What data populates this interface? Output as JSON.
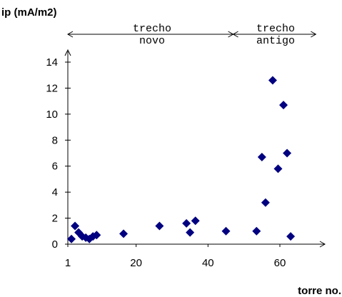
{
  "chart_data": {
    "type": "scatter",
    "title": "",
    "ylabel": "ip (mA/m2)",
    "xlabel": "torre no.",
    "xlim": [
      1,
      70
    ],
    "ylim": [
      0,
      15
    ],
    "x_ticks": [
      1,
      20,
      40,
      60
    ],
    "y_ticks": [
      0,
      2,
      4,
      6,
      8,
      10,
      12,
      14
    ],
    "marker_color": "#000080",
    "segments": [
      {
        "lines": [
          "trecho",
          "novo"
        ],
        "from": 1,
        "to": 47
      },
      {
        "lines": [
          "trecho",
          "antigo"
        ],
        "from": 47,
        "to": 70
      }
    ],
    "points": [
      {
        "x": 2,
        "y": 0.4
      },
      {
        "x": 3,
        "y": 1.4
      },
      {
        "x": 4,
        "y": 0.9
      },
      {
        "x": 5,
        "y": 0.6
      },
      {
        "x": 6,
        "y": 0.5
      },
      {
        "x": 7,
        "y": 0.4
      },
      {
        "x": 8,
        "y": 0.6
      },
      {
        "x": 9,
        "y": 0.7
      },
      {
        "x": 16.5,
        "y": 0.8
      },
      {
        "x": 26.5,
        "y": 1.4
      },
      {
        "x": 34,
        "y": 1.6
      },
      {
        "x": 35,
        "y": 0.9
      },
      {
        "x": 36.5,
        "y": 1.8
      },
      {
        "x": 45,
        "y": 1.0
      },
      {
        "x": 53.5,
        "y": 1.0
      },
      {
        "x": 55,
        "y": 6.7
      },
      {
        "x": 56,
        "y": 3.2
      },
      {
        "x": 58,
        "y": 12.6
      },
      {
        "x": 59.5,
        "y": 5.8
      },
      {
        "x": 61,
        "y": 10.7
      },
      {
        "x": 62,
        "y": 7.0
      },
      {
        "x": 63,
        "y": 0.6
      }
    ]
  }
}
